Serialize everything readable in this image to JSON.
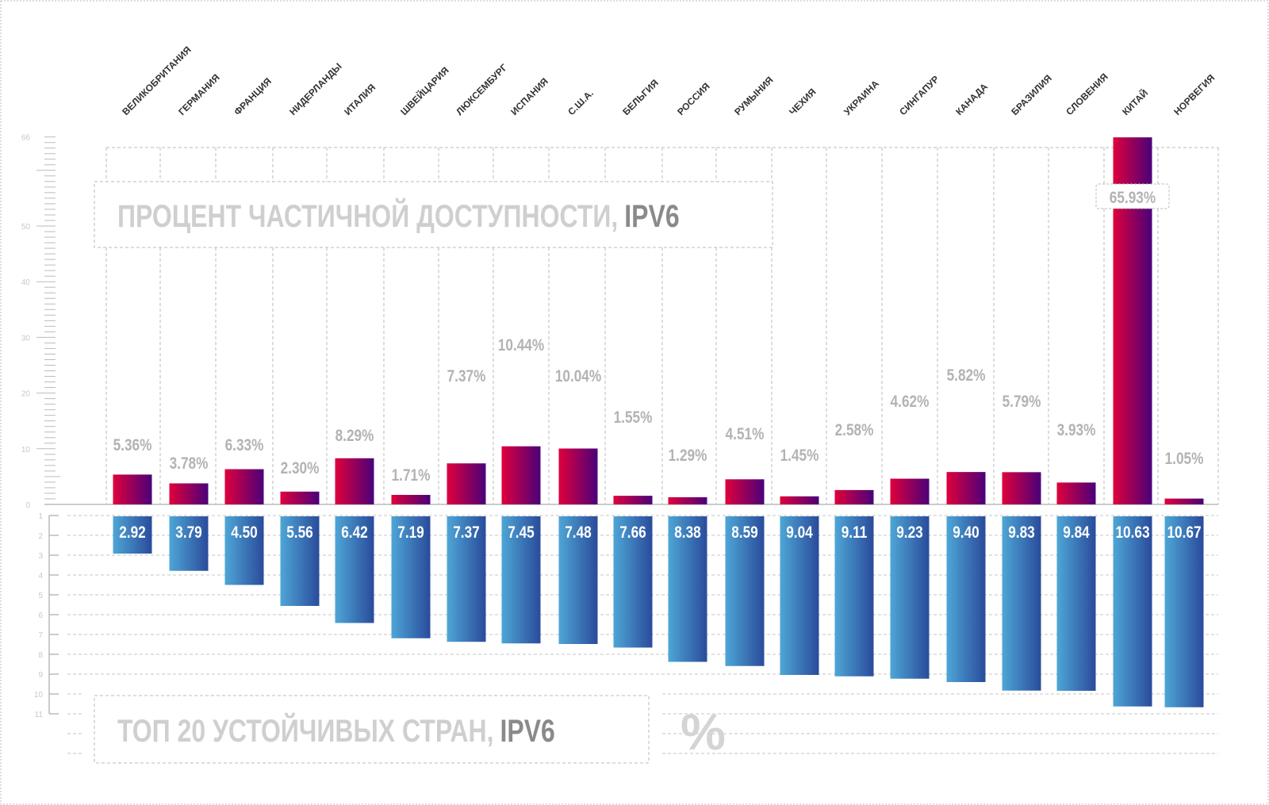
{
  "chart_data": [
    {
      "type": "bar",
      "title": "ПРОЦЕНТ ЧАСТИЧНОЙ ДОСТУПНОСТИ,",
      "title_highlight": "IPV6",
      "categories": [
        "ВЕЛИКОБРИТАНИЯ",
        "ГЕРМАНИЯ",
        "ФРАНЦИЯ",
        "НИДЕРЛАНДЫ",
        "ИТАЛИЯ",
        "ШВЕЙЦАРИЯ",
        "ЛЮКСЕМБУРГ",
        "ИСПАНИЯ",
        "С.Ш.А.",
        "БЕЛЬГИЯ",
        "РОССИЯ",
        "РУМЫНИЯ",
        "ЧЕХИЯ",
        "УКРАИНА",
        "СИНГАПУР",
        "КАНАДА",
        "БРАЗИЛИЯ",
        "СЛОВЕНИЯ",
        "КИТАЙ",
        "НОРВЕГИЯ"
      ],
      "values": [
        5.36,
        3.78,
        6.33,
        2.3,
        8.29,
        1.71,
        7.37,
        10.44,
        10.04,
        1.55,
        1.29,
        4.51,
        1.45,
        2.58,
        4.62,
        5.82,
        5.79,
        3.93,
        65.93,
        1.05
      ],
      "data_labels": [
        "5.36%",
        "3.78%",
        "6.33%",
        "2.30%",
        "8.29%",
        "1.71%",
        "7.37%",
        "10.44%",
        "10.04%",
        "1.55%",
        "1.29%",
        "4.51%",
        "1.45%",
        "2.58%",
        "4.62%",
        "5.82%",
        "5.79%",
        "3.93%",
        "65.93%",
        "1.05%"
      ],
      "ylim": [
        0,
        66
      ],
      "yticks": [
        "0",
        "10",
        "20",
        "30",
        "40",
        "50",
        "66"
      ],
      "grid": true,
      "colors": {
        "bar_start": "#e0003c",
        "bar_end": "#4a007a"
      }
    },
    {
      "type": "bar",
      "orientation": "downward",
      "title": "ТОП 20 УСТОЙЧИВЫХ СТРАН,",
      "title_highlight": "IPV6",
      "unit_label": "%",
      "categories": [
        "ВЕЛИКОБРИТАНИЯ",
        "ГЕРМАНИЯ",
        "ФРАНЦИЯ",
        "НИДЕРЛАНДЫ",
        "ИТАЛИЯ",
        "ШВЕЙЦАРИЯ",
        "ЛЮКСЕМБУРГ",
        "ИСПАНИЯ",
        "С.Ш.А.",
        "БЕЛЬГИЯ",
        "РОССИЯ",
        "РУМЫНИЯ",
        "ЧЕХИЯ",
        "УКРАИНА",
        "СИНГАПУР",
        "КАНАДА",
        "БРАЗИЛИЯ",
        "СЛОВЕНИЯ",
        "КИТАЙ",
        "НОРВЕГИЯ"
      ],
      "values": [
        2.92,
        3.79,
        4.5,
        5.56,
        6.42,
        7.19,
        7.37,
        7.45,
        7.48,
        7.66,
        8.38,
        8.59,
        9.04,
        9.11,
        9.23,
        9.4,
        9.83,
        9.84,
        10.63,
        10.67
      ],
      "data_labels": [
        "2.92",
        "3.79",
        "4.50",
        "5.56",
        "6.42",
        "7.19",
        "7.37",
        "7.45",
        "7.48",
        "7.66",
        "8.38",
        "8.59",
        "9.04",
        "9.11",
        "9.23",
        "9.40",
        "9.83",
        "9.84",
        "10.63",
        "10.67"
      ],
      "ylim": [
        1,
        11
      ],
      "yticks": [
        "1",
        "2",
        "3",
        "4",
        "5",
        "6",
        "7",
        "8",
        "9",
        "10",
        "11"
      ],
      "grid": true,
      "colors": {
        "bar_start": "#4ea6d6",
        "bar_end": "#2a4b9b"
      }
    }
  ]
}
